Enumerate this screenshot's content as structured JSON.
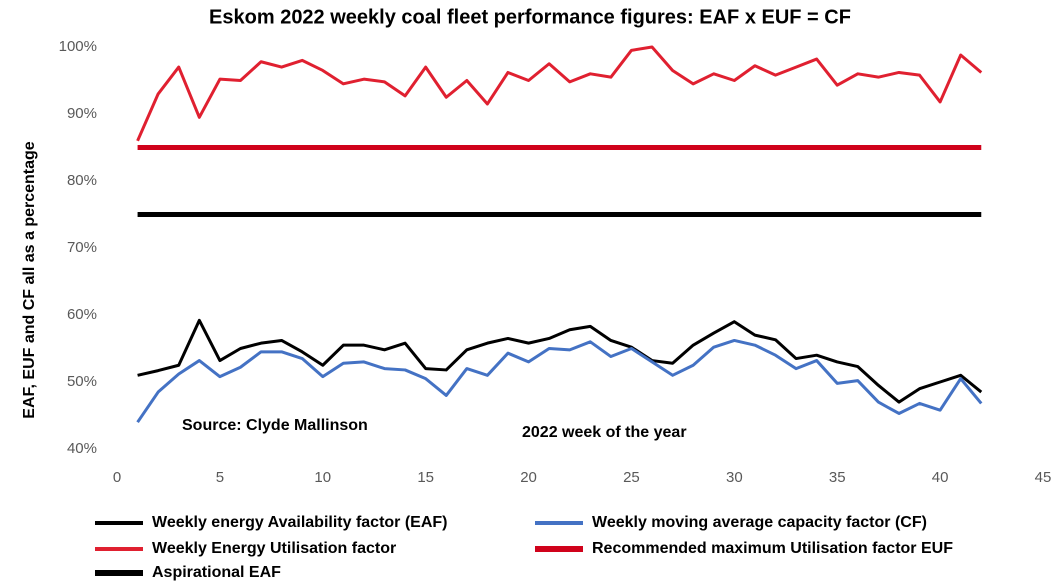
{
  "chart_data": {
    "type": "line",
    "title": "Eskom 2022 weekly coal fleet performance figures: EAF x EUF = CF",
    "ylabel": "EAF, EUF and CF all as a percentage",
    "annotations": [
      "Source: Clyde Mallinson",
      "2022 week of the year"
    ],
    "xlim": [
      0,
      45
    ],
    "xticks": [
      0,
      5,
      10,
      15,
      20,
      25,
      30,
      35,
      40,
      45
    ],
    "ylim": [
      40,
      100
    ],
    "yticks": [
      {
        "value": 40,
        "label": "40%"
      },
      {
        "value": 50,
        "label": "50%"
      },
      {
        "value": 60,
        "label": "60%"
      },
      {
        "value": 70,
        "label": "70%"
      },
      {
        "value": 80,
        "label": "80%"
      },
      {
        "value": 90,
        "label": "90%"
      },
      {
        "value": 100,
        "label": "100%"
      }
    ],
    "grid": false,
    "legend": "bottom",
    "x": [
      1,
      2,
      3,
      4,
      5,
      6,
      7,
      8,
      9,
      10,
      11,
      12,
      13,
      14,
      15,
      16,
      17,
      18,
      19,
      20,
      21,
      22,
      23,
      24,
      25,
      26,
      27,
      28,
      29,
      30,
      31,
      32,
      33,
      34,
      35,
      36,
      37,
      38,
      39,
      40,
      41,
      42
    ],
    "series": [
      {
        "name": "Weekly energy Availability factor (EAF)",
        "color": "#000000",
        "width": 3,
        "values": [
          51,
          51.7,
          52.5,
          59.2,
          53.2,
          55,
          55.8,
          56.2,
          54.5,
          52.5,
          55.5,
          55.5,
          54.8,
          55.8,
          52,
          51.8,
          54.8,
          55.8,
          56.5,
          55.8,
          56.5,
          57.8,
          58.3,
          56.2,
          55.2,
          53.2,
          52.8,
          55.5,
          57.3,
          59,
          57,
          56.3,
          53.5,
          54,
          53,
          52.3,
          49.5,
          47,
          49,
          50,
          51,
          48.5
        ]
      },
      {
        "name": "Weekly moving average capacity factor (CF)",
        "color": "#4472c4",
        "width": 3,
        "values": [
          44,
          48.5,
          51.2,
          53.2,
          50.8,
          52.2,
          54.5,
          54.5,
          53.5,
          50.8,
          52.8,
          53,
          52,
          51.8,
          50.5,
          48,
          52,
          51,
          54.3,
          53,
          55,
          54.8,
          56,
          53.8,
          55,
          53,
          51,
          52.5,
          55.2,
          56.2,
          55.5,
          54,
          52,
          53.2,
          49.8,
          50.2,
          47,
          45.3,
          46.8,
          45.8,
          50.5,
          46.8
        ]
      },
      {
        "name": "Weekly Energy Utilisation factor",
        "color": "#e02030",
        "width": 3,
        "values": [
          86,
          93,
          97,
          89.5,
          95.2,
          95,
          97.8,
          97,
          98,
          96.5,
          94.5,
          95.2,
          94.8,
          92.7,
          97,
          92.5,
          95,
          91.5,
          96.2,
          95,
          97.5,
          94.8,
          96,
          95.5,
          99.5,
          100,
          96.5,
          94.5,
          96,
          95,
          97.2,
          95.8,
          97,
          98.2,
          94.3,
          96,
          95.5,
          96.2,
          95.8,
          91.8,
          98.8,
          96.2
        ]
      },
      {
        "name": "Recommended maximum Utilisation factor EUF",
        "color": "#d0021b",
        "width": 5,
        "values": [
          85,
          85,
          85,
          85,
          85,
          85,
          85,
          85,
          85,
          85,
          85,
          85,
          85,
          85,
          85,
          85,
          85,
          85,
          85,
          85,
          85,
          85,
          85,
          85,
          85,
          85,
          85,
          85,
          85,
          85,
          85,
          85,
          85,
          85,
          85,
          85,
          85,
          85,
          85,
          85,
          85,
          85
        ]
      },
      {
        "name": "Aspirational EAF",
        "color": "#000000",
        "width": 5,
        "values": [
          75,
          75,
          75,
          75,
          75,
          75,
          75,
          75,
          75,
          75,
          75,
          75,
          75,
          75,
          75,
          75,
          75,
          75,
          75,
          75,
          75,
          75,
          75,
          75,
          75,
          75,
          75,
          75,
          75,
          75,
          75,
          75,
          75,
          75,
          75,
          75,
          75,
          75,
          75,
          75,
          75,
          75
        ]
      }
    ]
  }
}
